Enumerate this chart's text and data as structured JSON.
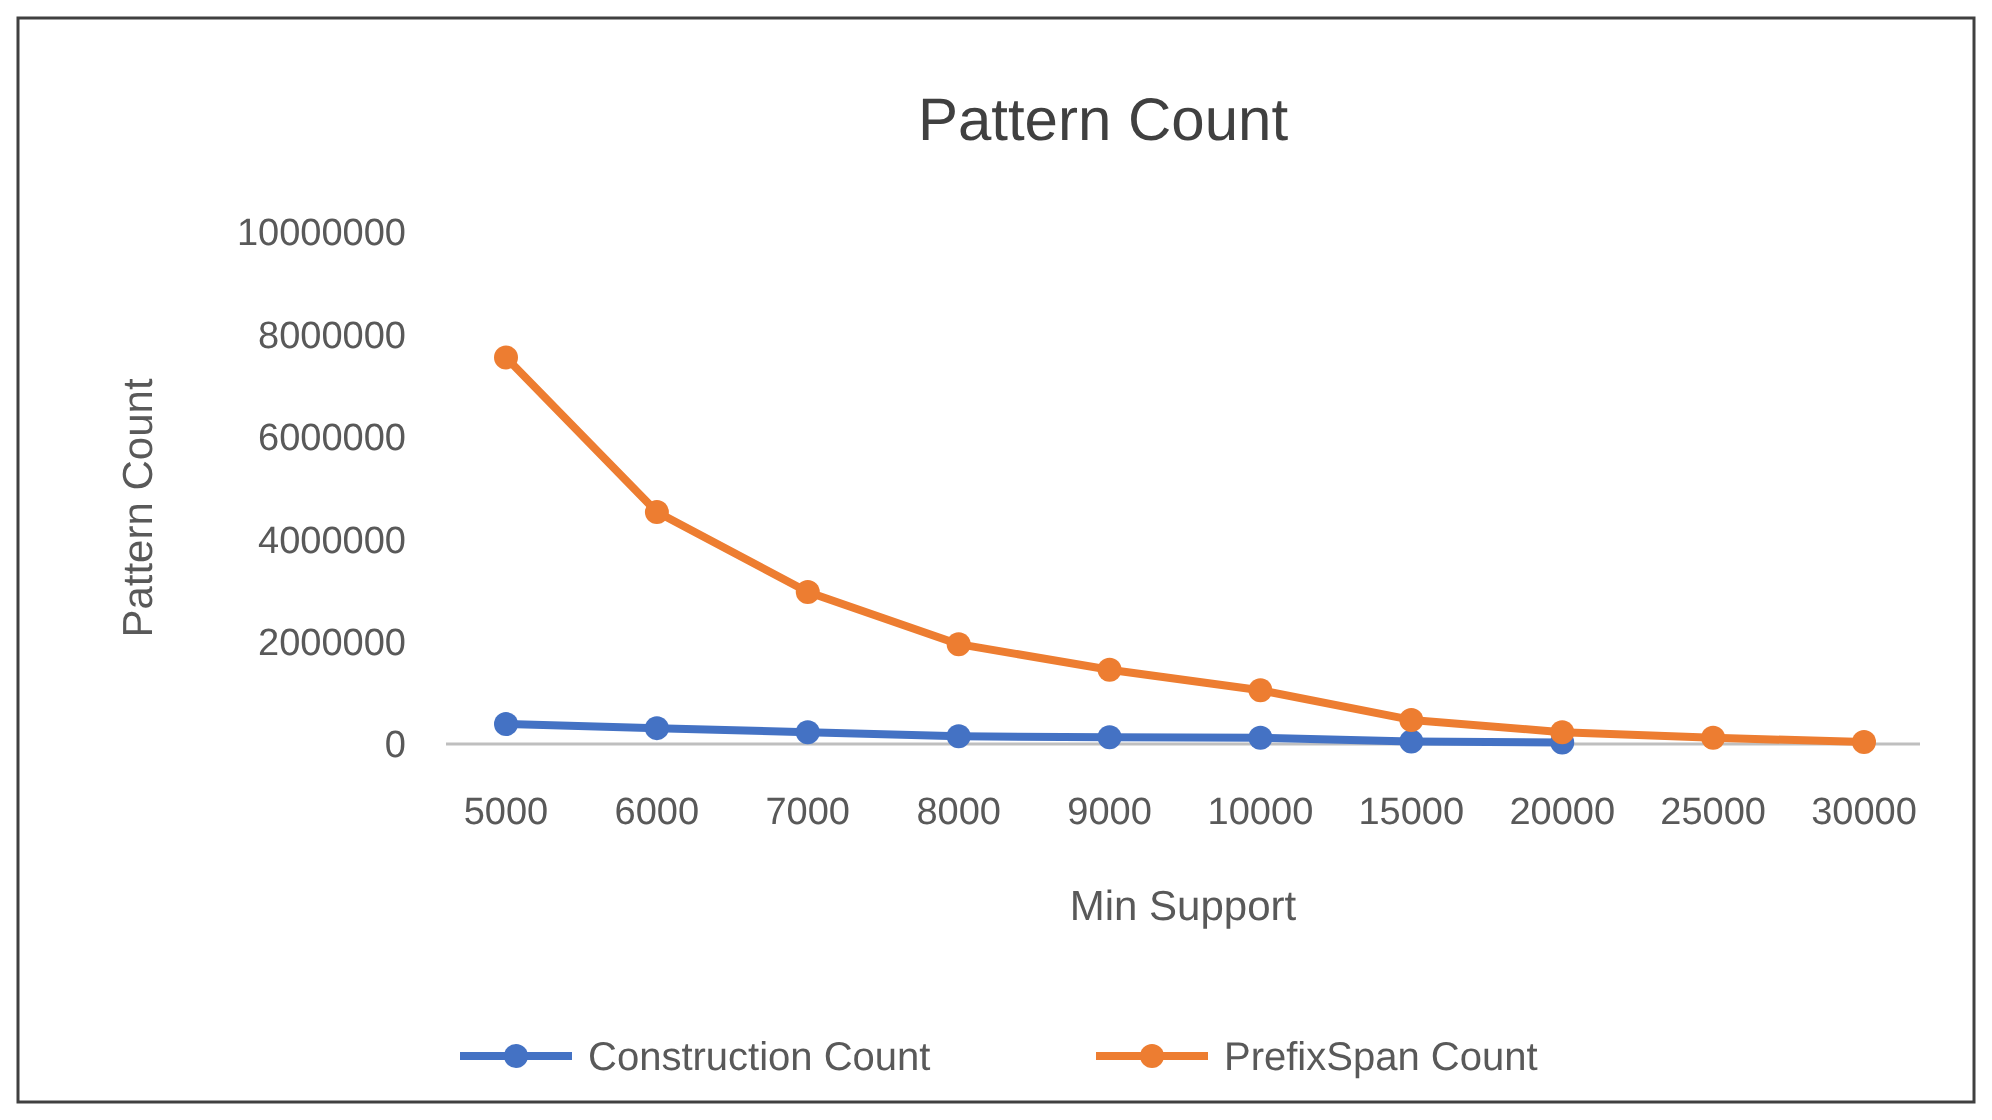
{
  "chart_data": {
    "type": "line",
    "title": "Pattern Count",
    "xlabel": "Min Support",
    "ylabel": "Pattern Count",
    "categories": [
      "5000",
      "6000",
      "7000",
      "8000",
      "9000",
      "10000",
      "15000",
      "20000",
      "25000",
      "30000"
    ],
    "series": [
      {
        "name": "Construction Count",
        "color": "#4472c4",
        "values": [
          390000,
          310000,
          230000,
          150000,
          130000,
          120000,
          50000,
          30000,
          null,
          null
        ]
      },
      {
        "name": "PrefixSpan Count",
        "color": "#ed7d31",
        "values": [
          7550000,
          4530000,
          2970000,
          1950000,
          1450000,
          1050000,
          470000,
          230000,
          120000,
          40000
        ]
      }
    ],
    "ylim": [
      0,
      10000000
    ],
    "yticks": [
      0,
      2000000,
      4000000,
      6000000,
      8000000,
      10000000
    ],
    "grid": false,
    "legend": "bottom",
    "marker": "circle",
    "line_style": "solid"
  }
}
